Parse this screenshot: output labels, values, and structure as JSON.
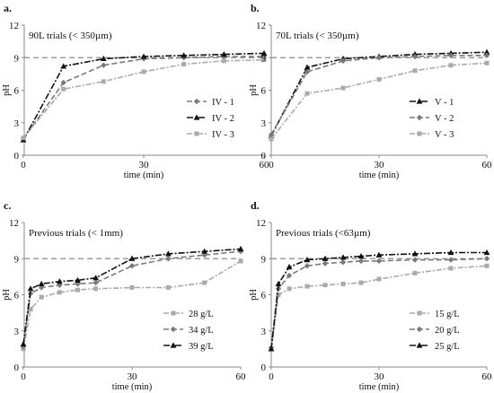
{
  "chart_data": [
    {
      "type": "line",
      "label": "a.",
      "subtitle": "90L trials (< 350µm)",
      "xlabel": "time (min)",
      "ylabel": "pH",
      "xlim": [
        0,
        60
      ],
      "ylim": [
        0,
        12
      ],
      "xticks": [
        0,
        30,
        60
      ],
      "yticks": [
        0,
        3,
        6,
        9,
        12
      ],
      "reference_line": 9,
      "legend_position": "bottom-right",
      "series": [
        {
          "name": "IV - 1",
          "color": "#7a7a7a",
          "dash": "6,3",
          "marker": "diamond",
          "x": [
            0,
            10,
            20,
            30,
            40,
            50,
            60
          ],
          "y": [
            1.5,
            6.7,
            8.3,
            8.9,
            9.0,
            9.1,
            9.1
          ]
        },
        {
          "name": "IV - 2",
          "color": "#111111",
          "dash": "7,2,2,2",
          "marker": "triangle",
          "x": [
            0,
            10,
            20,
            30,
            40,
            50,
            60
          ],
          "y": [
            1.4,
            8.2,
            8.9,
            9.1,
            9.2,
            9.3,
            9.4
          ]
        },
        {
          "name": "IV - 3",
          "color": "#aaaaaa",
          "dash": "6,2,2,2",
          "marker": "square",
          "x": [
            0,
            10,
            20,
            30,
            40,
            50,
            60
          ],
          "y": [
            1.6,
            6.1,
            6.8,
            7.7,
            8.4,
            8.7,
            8.8
          ]
        }
      ]
    },
    {
      "type": "line",
      "label": "b.",
      "subtitle": "70L trials (< 350µm)",
      "xlabel": "time (min)",
      "ylabel": "pH",
      "xlim": [
        0,
        60
      ],
      "ylim": [
        0,
        12
      ],
      "xticks": [
        0,
        30,
        60
      ],
      "yticks": [
        0,
        3,
        6,
        9,
        12
      ],
      "reference_line": 9,
      "legend_position": "bottom-right",
      "series": [
        {
          "name": "V - 1",
          "color": "#111111",
          "dash": "7,2,2,2",
          "marker": "triangle",
          "x": [
            0,
            10,
            20,
            30,
            40,
            50,
            60
          ],
          "y": [
            1.8,
            8.1,
            8.9,
            9.1,
            9.3,
            9.4,
            9.5
          ]
        },
        {
          "name": "V - 2",
          "color": "#7a7a7a",
          "dash": "6,3",
          "marker": "diamond",
          "x": [
            0,
            10,
            20,
            30,
            40,
            50,
            60
          ],
          "y": [
            1.9,
            7.7,
            8.7,
            9.0,
            9.1,
            9.2,
            9.2
          ]
        },
        {
          "name": "V - 3",
          "color": "#aaaaaa",
          "dash": "6,2,2,2",
          "marker": "square",
          "x": [
            0,
            10,
            20,
            30,
            40,
            50,
            60
          ],
          "y": [
            1.5,
            5.7,
            6.2,
            7.0,
            7.8,
            8.3,
            8.5
          ]
        }
      ]
    },
    {
      "type": "line",
      "label": "c.",
      "subtitle": "Previous trials (< 1mm)",
      "xlabel": "time (min)",
      "ylabel": "pH",
      "xlim": [
        0,
        60
      ],
      "ylim": [
        0,
        12
      ],
      "xticks": [
        0,
        30,
        60
      ],
      "yticks": [
        0,
        3,
        6,
        9,
        12
      ],
      "reference_line": 9,
      "legend_position": "bottom-right",
      "series": [
        {
          "name": "28 g/L",
          "color": "#aaaaaa",
          "dash": "6,2,2,2",
          "marker": "square",
          "x": [
            0,
            2,
            5,
            10,
            15,
            20,
            30,
            40,
            50,
            60
          ],
          "y": [
            1.5,
            4.8,
            5.8,
            6.2,
            6.4,
            6.5,
            6.6,
            6.6,
            7.0,
            8.8
          ]
        },
        {
          "name": "34 g/L",
          "color": "#7a7a7a",
          "dash": "6,3",
          "marker": "diamond",
          "x": [
            0,
            2,
            5,
            10,
            15,
            20,
            30,
            40,
            50,
            60
          ],
          "y": [
            1.7,
            6.1,
            6.6,
            6.8,
            6.9,
            7.0,
            8.4,
            9.0,
            9.3,
            9.6
          ]
        },
        {
          "name": "39 g/L",
          "color": "#111111",
          "dash": "7,2,2,2",
          "marker": "triangle",
          "x": [
            0,
            2,
            5,
            10,
            15,
            20,
            30,
            40,
            50,
            60
          ],
          "y": [
            1.9,
            6.5,
            6.9,
            7.1,
            7.2,
            7.4,
            9.0,
            9.4,
            9.6,
            9.8
          ]
        }
      ]
    },
    {
      "type": "line",
      "label": "d.",
      "subtitle": "Previous trials (<63µm)",
      "xlabel": "time (min)",
      "ylabel": "pH",
      "xlim": [
        0,
        60
      ],
      "ylim": [
        0,
        12
      ],
      "xticks": [
        0,
        30,
        60
      ],
      "yticks": [
        0,
        3,
        6,
        9,
        12
      ],
      "reference_line": 9,
      "legend_position": "bottom-right",
      "series": [
        {
          "name": "15 g/L",
          "color": "#aaaaaa",
          "dash": "6,2,2,2",
          "marker": "square",
          "x": [
            0,
            2,
            5,
            10,
            15,
            20,
            25,
            30,
            40,
            50,
            60
          ],
          "y": [
            1.5,
            6.0,
            6.5,
            6.7,
            6.8,
            6.9,
            7.0,
            7.3,
            7.8,
            8.2,
            8.4
          ]
        },
        {
          "name": "20 g/L",
          "color": "#7a7a7a",
          "dash": "6,3",
          "marker": "diamond",
          "x": [
            0,
            2,
            5,
            10,
            15,
            20,
            25,
            30,
            40,
            50,
            60
          ],
          "y": [
            1.6,
            6.5,
            7.6,
            8.4,
            8.6,
            8.7,
            8.8,
            8.8,
            8.9,
            8.9,
            9.0
          ]
        },
        {
          "name": "25 g/L",
          "color": "#111111",
          "dash": "7,2,2,2",
          "marker": "triangle",
          "x": [
            0,
            2,
            5,
            10,
            15,
            20,
            25,
            30,
            40,
            50,
            60
          ],
          "y": [
            1.5,
            6.9,
            8.3,
            8.9,
            9.0,
            9.1,
            9.2,
            9.3,
            9.4,
            9.5,
            9.5
          ]
        }
      ]
    }
  ]
}
